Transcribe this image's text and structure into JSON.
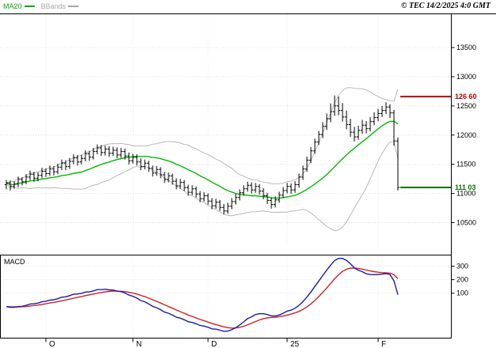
{
  "header": {
    "legend": [
      {
        "label": "MA20",
        "color": "#00a800"
      },
      {
        "label": "BBands",
        "color": "#a8a8a8"
      }
    ],
    "copyright": "© TEC 14/2/2025 4:0 GMT"
  },
  "chart_data": {
    "type": "ohlc-bar",
    "title": "",
    "x_ticks": [
      {
        "index": 10,
        "label": "O"
      },
      {
        "index": 32,
        "label": "N"
      },
      {
        "index": 51,
        "label": "D"
      },
      {
        "index": 71,
        "label": "25"
      },
      {
        "index": 94,
        "label": "F"
      }
    ],
    "price_panel": {
      "ylim": [
        10100,
        14070
      ],
      "y_ticks": [
        {
          "value": 13500,
          "label": "13500"
        },
        {
          "value": 13000,
          "label": "13000"
        },
        {
          "value": 12500,
          "label": "12500"
        },
        {
          "value": 12000,
          "label": "12000"
        },
        {
          "value": 11500,
          "label": "11500"
        },
        {
          "value": 11000,
          "label": "11000"
        },
        {
          "value": 10500,
          "label": "10500"
        }
      ],
      "levels": [
        {
          "value": 12660,
          "label": "126 60",
          "color": "#bb0000"
        },
        {
          "value": 11103,
          "label": "111 03",
          "color": "#007700"
        }
      ],
      "ma_period": 20,
      "bband_stddev": 2,
      "ma20_color": "#00bb00",
      "bband_color": "#b8b8b8",
      "bar_color": "#000000",
      "grid_color": "#dcdcdc"
    },
    "macd_panel": {
      "label": "MACD",
      "fast": 12,
      "slow": 26,
      "signal": 9,
      "ylim": [
        -230,
        385
      ],
      "y_ticks": [
        {
          "value": 300,
          "label": "300"
        },
        {
          "value": 200,
          "label": "200"
        },
        {
          "value": 100,
          "label": "100"
        }
      ],
      "macd_color": "#1a1aae",
      "signal_color": "#cc2222"
    },
    "ohlc": [
      [
        11150,
        11230,
        11070,
        11180
      ],
      [
        11180,
        11220,
        11050,
        11120
      ],
      [
        11120,
        11210,
        11080,
        11160
      ],
      [
        11160,
        11290,
        11110,
        11240
      ],
      [
        11240,
        11280,
        11140,
        11200
      ],
      [
        11200,
        11330,
        11160,
        11280
      ],
      [
        11280,
        11390,
        11230,
        11330
      ],
      [
        11330,
        11370,
        11200,
        11260
      ],
      [
        11260,
        11360,
        11210,
        11310
      ],
      [
        11310,
        11440,
        11260,
        11380
      ],
      [
        11380,
        11430,
        11280,
        11340
      ],
      [
        11340,
        11480,
        11300,
        11420
      ],
      [
        11420,
        11470,
        11310,
        11370
      ],
      [
        11370,
        11510,
        11330,
        11450
      ],
      [
        11450,
        11580,
        11400,
        11520
      ],
      [
        11520,
        11570,
        11400,
        11460
      ],
      [
        11460,
        11610,
        11420,
        11550
      ],
      [
        11550,
        11670,
        11500,
        11610
      ],
      [
        11610,
        11660,
        11480,
        11540
      ],
      [
        11540,
        11660,
        11500,
        11600
      ],
      [
        11600,
        11740,
        11550,
        11680
      ],
      [
        11680,
        11730,
        11560,
        11620
      ],
      [
        11620,
        11780,
        11580,
        11720
      ],
      [
        11720,
        11840,
        11670,
        11780
      ],
      [
        11780,
        11830,
        11640,
        11700
      ],
      [
        11700,
        11820,
        11650,
        11760
      ],
      [
        11760,
        11810,
        11630,
        11690
      ],
      [
        11690,
        11800,
        11640,
        11740
      ],
      [
        11740,
        11790,
        11600,
        11660
      ],
      [
        11660,
        11780,
        11610,
        11720
      ],
      [
        11720,
        11770,
        11580,
        11640
      ],
      [
        11640,
        11700,
        11500,
        11560
      ],
      [
        11560,
        11680,
        11510,
        11620
      ],
      [
        11620,
        11670,
        11480,
        11540
      ],
      [
        11540,
        11600,
        11400,
        11460
      ],
      [
        11460,
        11580,
        11410,
        11520
      ],
      [
        11520,
        11560,
        11370,
        11430
      ],
      [
        11430,
        11480,
        11290,
        11350
      ],
      [
        11350,
        11470,
        11300,
        11410
      ],
      [
        11410,
        11450,
        11260,
        11320
      ],
      [
        11320,
        11370,
        11180,
        11240
      ],
      [
        11240,
        11360,
        11190,
        11300
      ],
      [
        11300,
        11340,
        11150,
        11210
      ],
      [
        11210,
        11260,
        11070,
        11130
      ],
      [
        11130,
        11250,
        11080,
        11190
      ],
      [
        11190,
        11230,
        11040,
        11100
      ],
      [
        11100,
        11150,
        10960,
        11020
      ],
      [
        11020,
        11140,
        10970,
        11080
      ],
      [
        11080,
        11120,
        10930,
        10990
      ],
      [
        10990,
        11040,
        10850,
        10910
      ],
      [
        10910,
        11020,
        10860,
        10960
      ],
      [
        10960,
        11000,
        10810,
        10870
      ],
      [
        10870,
        10920,
        10730,
        10790
      ],
      [
        10790,
        10910,
        10740,
        10850
      ],
      [
        10850,
        10890,
        10700,
        10760
      ],
      [
        10760,
        10820,
        10640,
        10700
      ],
      [
        10700,
        10840,
        10650,
        10780
      ],
      [
        10780,
        10920,
        10730,
        10860
      ],
      [
        10860,
        10990,
        10810,
        10930
      ],
      [
        10930,
        11070,
        10880,
        11010
      ],
      [
        11010,
        11140,
        10960,
        11080
      ],
      [
        11080,
        11200,
        11030,
        11140
      ],
      [
        11140,
        11190,
        11000,
        11060
      ],
      [
        11060,
        11180,
        11010,
        11120
      ],
      [
        11120,
        11160,
        10980,
        11040
      ],
      [
        11040,
        11090,
        10900,
        10960
      ],
      [
        10960,
        11010,
        10820,
        10880
      ],
      [
        10880,
        10930,
        10740,
        10810
      ],
      [
        10810,
        10950,
        10760,
        10890
      ],
      [
        10890,
        11030,
        10840,
        10970
      ],
      [
        10970,
        11110,
        10920,
        11050
      ],
      [
        11050,
        11180,
        11000,
        11120
      ],
      [
        11120,
        11170,
        10990,
        11060
      ],
      [
        11060,
        11210,
        11010,
        11150
      ],
      [
        11150,
        11340,
        11100,
        11280
      ],
      [
        11280,
        11480,
        11230,
        11420
      ],
      [
        11420,
        11630,
        11370,
        11570
      ],
      [
        11570,
        11790,
        11520,
        11730
      ],
      [
        11730,
        11940,
        11680,
        11880
      ],
      [
        11880,
        12070,
        11830,
        12010
      ],
      [
        12010,
        12220,
        11950,
        12150
      ],
      [
        12150,
        12370,
        12090,
        12280
      ],
      [
        12280,
        12540,
        12220,
        12400
      ],
      [
        12400,
        12680,
        12330,
        12500
      ],
      [
        12500,
        12660,
        12340,
        12420
      ],
      [
        12420,
        12550,
        12230,
        12310
      ],
      [
        12310,
        12420,
        12100,
        12180
      ],
      [
        12180,
        12280,
        11970,
        12050
      ],
      [
        12050,
        12140,
        11890,
        11970
      ],
      [
        11970,
        12160,
        11920,
        12080
      ],
      [
        12080,
        12260,
        12020,
        12170
      ],
      [
        12170,
        12240,
        12030,
        12110
      ],
      [
        12110,
        12310,
        12060,
        12230
      ],
      [
        12230,
        12390,
        12170,
        12300
      ],
      [
        12300,
        12450,
        12240,
        12370
      ],
      [
        12370,
        12500,
        12310,
        12420
      ],
      [
        12420,
        12560,
        12360,
        12480
      ],
      [
        12480,
        12530,
        12290,
        12380
      ],
      [
        12380,
        12430,
        11820,
        11900
      ],
      [
        11900,
        11960,
        11050,
        11103
      ]
    ]
  }
}
